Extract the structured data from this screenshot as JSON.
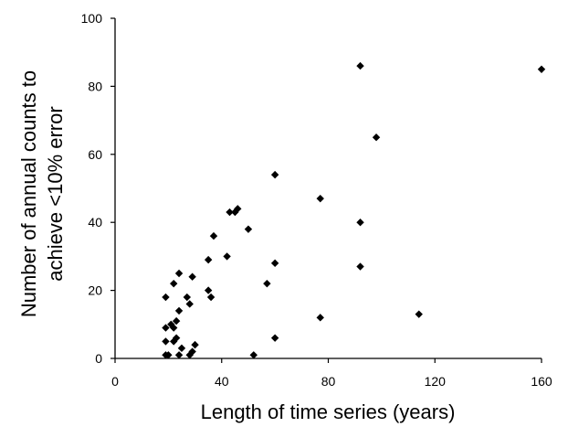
{
  "chart_data": {
    "type": "scatter",
    "xlabel": "Length of time series (years)",
    "ylabel_lines": [
      "Number of annual counts to",
      "achieve <10% error"
    ],
    "xlim": [
      0,
      160
    ],
    "ylim": [
      0,
      100
    ],
    "xticks": [
      0,
      40,
      80,
      120,
      160
    ],
    "yticks": [
      0,
      20,
      40,
      60,
      80,
      100
    ],
    "grid": false,
    "marker": "diamond",
    "points": [
      {
        "x": 19,
        "y": 18
      },
      {
        "x": 19,
        "y": 9
      },
      {
        "x": 19,
        "y": 5
      },
      {
        "x": 19,
        "y": 1
      },
      {
        "x": 20,
        "y": 1
      },
      {
        "x": 21,
        "y": 10
      },
      {
        "x": 22,
        "y": 5
      },
      {
        "x": 22,
        "y": 9
      },
      {
        "x": 22,
        "y": 22
      },
      {
        "x": 23,
        "y": 11
      },
      {
        "x": 23,
        "y": 6
      },
      {
        "x": 24,
        "y": 14
      },
      {
        "x": 24,
        "y": 25
      },
      {
        "x": 24,
        "y": 1
      },
      {
        "x": 25,
        "y": 3
      },
      {
        "x": 27,
        "y": 18
      },
      {
        "x": 28,
        "y": 16
      },
      {
        "x": 28,
        "y": 1
      },
      {
        "x": 29,
        "y": 24
      },
      {
        "x": 29,
        "y": 2
      },
      {
        "x": 30,
        "y": 4
      },
      {
        "x": 35,
        "y": 20
      },
      {
        "x": 35,
        "y": 29
      },
      {
        "x": 36,
        "y": 18
      },
      {
        "x": 37,
        "y": 36
      },
      {
        "x": 42,
        "y": 30
      },
      {
        "x": 43,
        "y": 43
      },
      {
        "x": 45,
        "y": 43
      },
      {
        "x": 46,
        "y": 44
      },
      {
        "x": 50,
        "y": 38
      },
      {
        "x": 52,
        "y": 1
      },
      {
        "x": 57,
        "y": 22
      },
      {
        "x": 60,
        "y": 54
      },
      {
        "x": 60,
        "y": 28
      },
      {
        "x": 60,
        "y": 6
      },
      {
        "x": 77,
        "y": 47
      },
      {
        "x": 77,
        "y": 12
      },
      {
        "x": 92,
        "y": 86
      },
      {
        "x": 92,
        "y": 40
      },
      {
        "x": 92,
        "y": 27
      },
      {
        "x": 98,
        "y": 65
      },
      {
        "x": 114,
        "y": 13
      },
      {
        "x": 160,
        "y": 85
      }
    ]
  }
}
